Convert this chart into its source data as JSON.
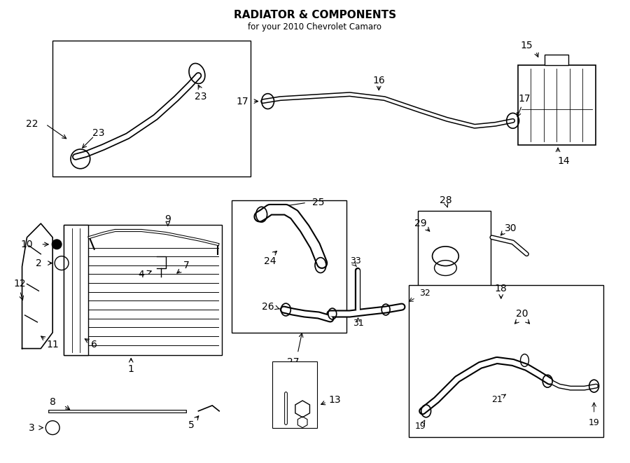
{
  "title": "RADIATOR & COMPONENTS",
  "subtitle": "for your 2010 Chevrolet Camaro",
  "bg_color": "#ffffff",
  "line_color": "#000000",
  "fig_width": 9.0,
  "fig_height": 6.61
}
